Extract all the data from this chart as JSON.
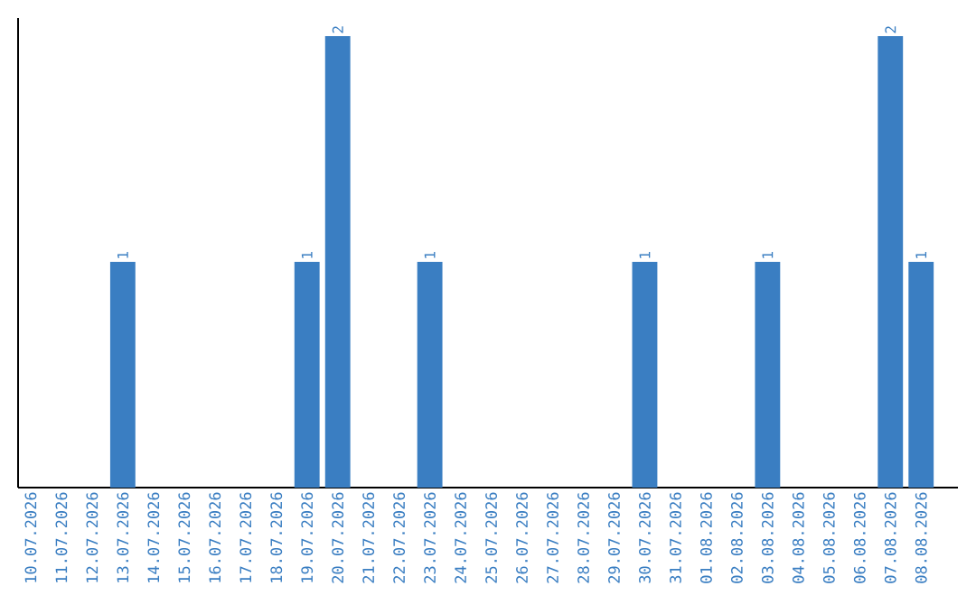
{
  "chart_data": {
    "type": "bar",
    "categories": [
      "10.07.2026",
      "11.07.2026",
      "12.07.2026",
      "13.07.2026",
      "14.07.2026",
      "15.07.2026",
      "16.07.2026",
      "17.07.2026",
      "18.07.2026",
      "19.07.2026",
      "20.07.2026",
      "21.07.2026",
      "22.07.2026",
      "23.07.2026",
      "24.07.2026",
      "25.07.2026",
      "26.07.2026",
      "27.07.2026",
      "28.07.2026",
      "29.07.2026",
      "30.07.2026",
      "31.07.2026",
      "01.08.2026",
      "02.08.2026",
      "03.08.2026",
      "04.08.2026",
      "05.08.2026",
      "06.08.2026",
      "07.08.2026",
      "08.08.2026"
    ],
    "values": [
      0,
      0,
      0,
      1,
      0,
      0,
      0,
      0,
      0,
      1,
      2,
      0,
      0,
      1,
      0,
      0,
      0,
      0,
      0,
      0,
      1,
      0,
      0,
      0,
      1,
      0,
      0,
      0,
      2,
      1
    ],
    "value_labels": [
      null,
      null,
      null,
      "1",
      null,
      null,
      null,
      null,
      null,
      "1",
      "2",
      null,
      null,
      "1",
      null,
      null,
      null,
      null,
      null,
      null,
      "1",
      null,
      null,
      null,
      "1",
      null,
      null,
      null,
      "2",
      "1"
    ],
    "color": "#3a7ec2",
    "ylim": [
      0,
      2.08
    ]
  }
}
